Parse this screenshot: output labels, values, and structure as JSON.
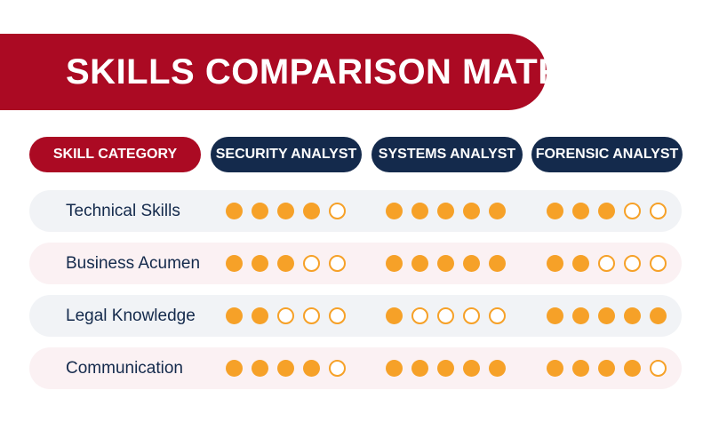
{
  "title": "SKILLS COMPARISON MATRIX",
  "header": {
    "category": "SKILL CATEGORY",
    "roles": [
      "SECURITY ANALYST",
      "SYSTEMS ANALYST",
      "FORENSIC ANALYST"
    ]
  },
  "rating_max": 5,
  "colors": {
    "banner": "#ab0a23",
    "role_pill": "#142a4c",
    "dot": "#f6a128",
    "label_text": "#142a4c"
  },
  "rows": [
    {
      "label": "Technical Skills",
      "ratings": [
        4,
        5,
        3
      ]
    },
    {
      "label": "Business Acumen",
      "ratings": [
        3,
        5,
        2
      ]
    },
    {
      "label": "Legal Knowledge",
      "ratings": [
        2,
        1,
        5
      ]
    },
    {
      "label": "Communication",
      "ratings": [
        4,
        5,
        4
      ]
    }
  ]
}
